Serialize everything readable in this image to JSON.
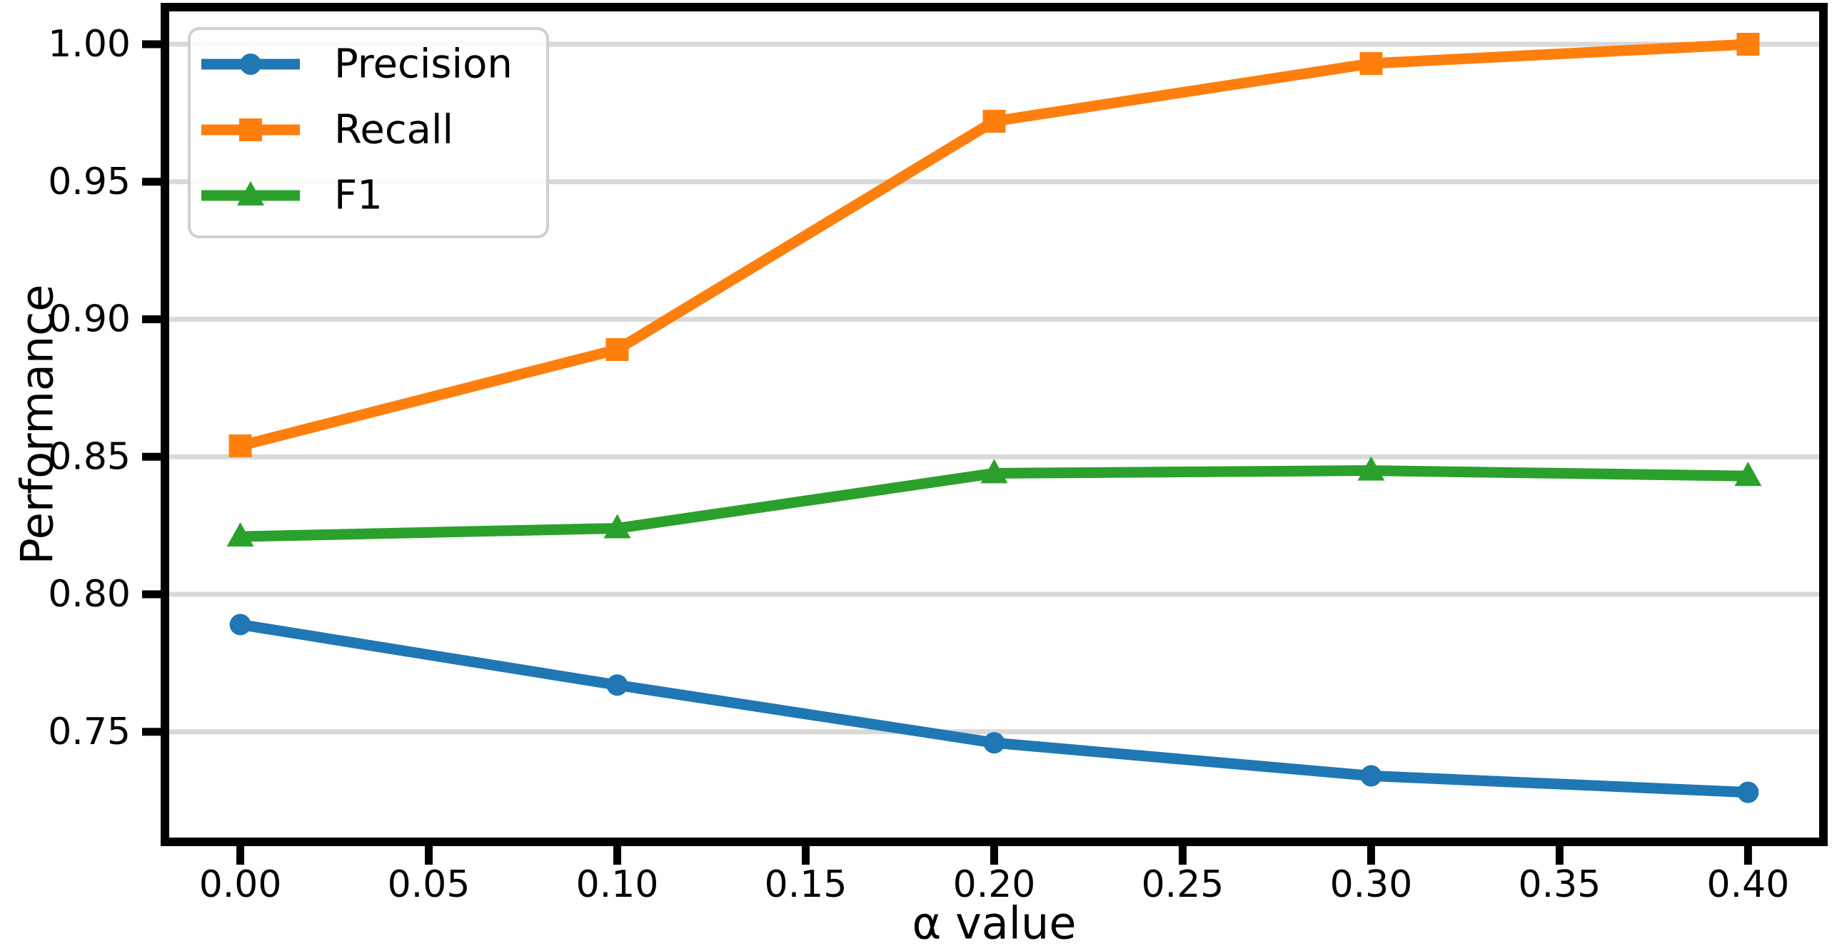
{
  "figure": {
    "description": "Line chart of model performance metrics versus alpha value"
  },
  "colors": {
    "background": "#ffffff",
    "spine": "#000000",
    "text": "#000000",
    "grid": "#d9d9d9",
    "legend_border": "#d0d0d0",
    "legend_fill": "rgba(255,255,255,0.85)",
    "precision": "#1f77b4",
    "recall": "#ff7f0e",
    "f1": "#2ca02c"
  },
  "chart_data": {
    "type": "line",
    "title": "",
    "xlabel": "α value",
    "ylabel": "Performance",
    "grid": "horizontal",
    "legend_position": "upper-left",
    "xlim": [
      -0.02,
      0.42
    ],
    "ylim": [
      0.71,
      1.0135
    ],
    "x": [
      0.0,
      0.1,
      0.2,
      0.3,
      0.4
    ],
    "series": [
      {
        "name": "Precision",
        "color": "#1f77b4",
        "marker": "circle",
        "values": [
          0.789,
          0.767,
          0.746,
          0.734,
          0.728
        ]
      },
      {
        "name": "Recall",
        "color": "#ff7f0e",
        "marker": "square",
        "values": [
          0.854,
          0.889,
          0.972,
          0.993,
          1.0
        ]
      },
      {
        "name": "F1",
        "color": "#2ca02c",
        "marker": "triangle",
        "values": [
          0.821,
          0.824,
          0.844,
          0.845,
          0.843
        ]
      }
    ],
    "x_ticks": [
      {
        "value": 0.0,
        "label": "0.00"
      },
      {
        "value": 0.05,
        "label": "0.05"
      },
      {
        "value": 0.1,
        "label": "0.10"
      },
      {
        "value": 0.15,
        "label": "0.15"
      },
      {
        "value": 0.2,
        "label": "0.20"
      },
      {
        "value": 0.25,
        "label": "0.25"
      },
      {
        "value": 0.3,
        "label": "0.30"
      },
      {
        "value": 0.35,
        "label": "0.35"
      },
      {
        "value": 0.4,
        "label": "0.40"
      }
    ],
    "y_ticks": [
      {
        "value": 0.75,
        "label": "0.75"
      },
      {
        "value": 0.8,
        "label": "0.80"
      },
      {
        "value": 0.85,
        "label": "0.85"
      },
      {
        "value": 0.9,
        "label": "0.90"
      },
      {
        "value": 0.95,
        "label": "0.95"
      },
      {
        "value": 1.0,
        "label": "1.00"
      }
    ]
  }
}
